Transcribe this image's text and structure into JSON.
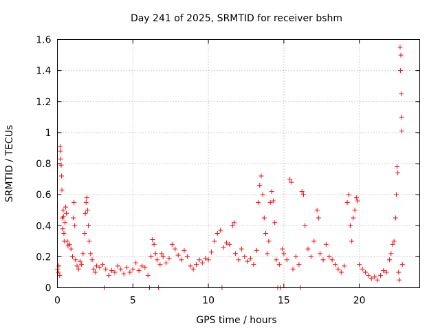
{
  "chart_data": {
    "type": "scatter",
    "title": "Day 241 of 2025, SRMTID for receiver bshm",
    "xlabel": "GPS time / hours",
    "ylabel": "SRMTID / TECUs",
    "xlim": [
      0,
      24
    ],
    "ylim": [
      0,
      1.6
    ],
    "xticks": [
      0,
      5,
      10,
      15,
      20
    ],
    "xtick_labels": [
      "0",
      "5",
      "10",
      "15",
      "20"
    ],
    "yticks": [
      0,
      0.2,
      0.4,
      0.6,
      0.8,
      1.0,
      1.2,
      1.4,
      1.6
    ],
    "ytick_labels": [
      "0",
      "0.2",
      "0.4",
      "0.6",
      "0.8",
      "1",
      "1.2",
      "1.4",
      "1.6"
    ],
    "grid": true,
    "marker": "+",
    "color": "#ff0000",
    "series": [
      {
        "name": "SRMTID",
        "points": [
          [
            0.0,
            0.12
          ],
          [
            0.05,
            0.1
          ],
          [
            0.1,
            0.14
          ],
          [
            0.15,
            0.08
          ],
          [
            0.18,
            0.91
          ],
          [
            0.2,
            0.88
          ],
          [
            0.22,
            0.83
          ],
          [
            0.25,
            0.79
          ],
          [
            0.27,
            0.72
          ],
          [
            0.3,
            0.63
          ],
          [
            0.32,
            0.45
          ],
          [
            0.35,
            0.38
          ],
          [
            0.38,
            0.5
          ],
          [
            0.4,
            0.46
          ],
          [
            0.43,
            0.35
          ],
          [
            0.45,
            0.3
          ],
          [
            0.5,
            0.42
          ],
          [
            0.55,
            0.52
          ],
          [
            0.6,
            0.48
          ],
          [
            0.65,
            0.3
          ],
          [
            0.7,
            0.27
          ],
          [
            0.8,
            0.28
          ],
          [
            0.9,
            0.25
          ],
          [
            1.0,
            0.2
          ],
          [
            1.05,
            0.45
          ],
          [
            1.1,
            0.55
          ],
          [
            1.15,
            0.4
          ],
          [
            1.2,
            0.18
          ],
          [
            1.3,
            0.14
          ],
          [
            1.4,
            0.12
          ],
          [
            1.5,
            0.17
          ],
          [
            1.6,
            0.15
          ],
          [
            1.7,
            0.22
          ],
          [
            1.8,
            0.35
          ],
          [
            1.85,
            0.48
          ],
          [
            1.9,
            0.55
          ],
          [
            1.95,
            0.58
          ],
          [
            2.0,
            0.5
          ],
          [
            2.05,
            0.4
          ],
          [
            2.1,
            0.3
          ],
          [
            2.2,
            0.22
          ],
          [
            2.3,
            0.18
          ],
          [
            2.4,
            0.12
          ],
          [
            2.5,
            0.1
          ],
          [
            2.6,
            0.14
          ],
          [
            2.8,
            0.13
          ],
          [
            3.0,
            0.15
          ],
          [
            3.2,
            0.12
          ],
          [
            3.1,
            0.0
          ],
          [
            3.4,
            0.08
          ],
          [
            3.6,
            0.11
          ],
          [
            3.8,
            0.1
          ],
          [
            4.0,
            0.14
          ],
          [
            4.2,
            0.12
          ],
          [
            4.4,
            0.09
          ],
          [
            4.6,
            0.13
          ],
          [
            4.8,
            0.1
          ],
          [
            5.0,
            0.12
          ],
          [
            5.2,
            0.16
          ],
          [
            5.4,
            0.11
          ],
          [
            5.6,
            0.14
          ],
          [
            5.8,
            0.13
          ],
          [
            6.0,
            0.08
          ],
          [
            6.1,
            0.0
          ],
          [
            6.2,
            0.2
          ],
          [
            6.3,
            0.31
          ],
          [
            6.4,
            0.28
          ],
          [
            6.5,
            0.22
          ],
          [
            6.6,
            0.18
          ],
          [
            6.7,
            0.0
          ],
          [
            6.8,
            0.15
          ],
          [
            6.9,
            0.22
          ],
          [
            7.0,
            0.2
          ],
          [
            7.2,
            0.16
          ],
          [
            7.4,
            0.19
          ],
          [
            7.6,
            0.28
          ],
          [
            7.8,
            0.25
          ],
          [
            8.0,
            0.21
          ],
          [
            8.2,
            0.18
          ],
          [
            8.4,
            0.24
          ],
          [
            8.6,
            0.2
          ],
          [
            8.8,
            0.14
          ],
          [
            9.0,
            0.12
          ],
          [
            9.2,
            0.15
          ],
          [
            9.4,
            0.18
          ],
          [
            9.6,
            0.16
          ],
          [
            9.8,
            0.19
          ],
          [
            10.0,
            0.18
          ],
          [
            10.2,
            0.23
          ],
          [
            10.4,
            0.3
          ],
          [
            10.6,
            0.35
          ],
          [
            10.8,
            0.37
          ],
          [
            10.9,
            0.0
          ],
          [
            11.0,
            0.26
          ],
          [
            11.2,
            0.29
          ],
          [
            11.4,
            0.28
          ],
          [
            11.6,
            0.4
          ],
          [
            11.7,
            0.42
          ],
          [
            11.8,
            0.22
          ],
          [
            12.0,
            0.18
          ],
          [
            12.2,
            0.25
          ],
          [
            12.4,
            0.2
          ],
          [
            12.6,
            0.17
          ],
          [
            12.8,
            0.19
          ],
          [
            13.0,
            0.15
          ],
          [
            13.2,
            0.24
          ],
          [
            13.3,
            0.55
          ],
          [
            13.4,
            0.66
          ],
          [
            13.5,
            0.72
          ],
          [
            13.6,
            0.6
          ],
          [
            13.7,
            0.45
          ],
          [
            13.8,
            0.35
          ],
          [
            13.9,
            0.22
          ],
          [
            14.0,
            0.3
          ],
          [
            14.1,
            0.55
          ],
          [
            14.2,
            0.62
          ],
          [
            14.3,
            0.56
          ],
          [
            14.4,
            0.42
          ],
          [
            14.5,
            0.18
          ],
          [
            14.6,
            0.0
          ],
          [
            14.7,
            0.15
          ],
          [
            14.8,
            0.0
          ],
          [
            14.9,
            0.25
          ],
          [
            15.0,
            0.22
          ],
          [
            15.2,
            0.18
          ],
          [
            15.4,
            0.7
          ],
          [
            15.5,
            0.68
          ],
          [
            15.6,
            0.12
          ],
          [
            15.8,
            0.2
          ],
          [
            16.0,
            0.15
          ],
          [
            16.1,
            0.0
          ],
          [
            16.2,
            0.62
          ],
          [
            16.3,
            0.6
          ],
          [
            16.4,
            0.4
          ],
          [
            16.6,
            0.25
          ],
          [
            16.8,
            0.2
          ],
          [
            17.0,
            0.3
          ],
          [
            17.2,
            0.5
          ],
          [
            17.3,
            0.45
          ],
          [
            17.4,
            0.22
          ],
          [
            17.6,
            0.18
          ],
          [
            17.8,
            0.28
          ],
          [
            18.0,
            0.2
          ],
          [
            18.2,
            0.18
          ],
          [
            18.4,
            0.15
          ],
          [
            18.6,
            0.12
          ],
          [
            18.8,
            0.1
          ],
          [
            19.0,
            0.14
          ],
          [
            19.2,
            0.55
          ],
          [
            19.3,
            0.6
          ],
          [
            19.4,
            0.4
          ],
          [
            19.5,
            0.3
          ],
          [
            19.6,
            0.45
          ],
          [
            19.7,
            0.5
          ],
          [
            19.8,
            0.58
          ],
          [
            19.9,
            0.56
          ],
          [
            20.0,
            0.15
          ],
          [
            20.2,
            0.12
          ],
          [
            20.4,
            0.1
          ],
          [
            20.6,
            0.08
          ],
          [
            20.8,
            0.06
          ],
          [
            21.0,
            0.07
          ],
          [
            21.2,
            0.05
          ],
          [
            21.4,
            0.08
          ],
          [
            21.6,
            0.11
          ],
          [
            21.8,
            0.1
          ],
          [
            22.0,
            0.18
          ],
          [
            22.1,
            0.22
          ],
          [
            22.2,
            0.28
          ],
          [
            22.3,
            0.3
          ],
          [
            22.4,
            0.45
          ],
          [
            22.45,
            0.6
          ],
          [
            22.5,
            0.78
          ],
          [
            22.55,
            0.74
          ],
          [
            22.6,
            0.1
          ],
          [
            22.65,
            0.05
          ],
          [
            22.7,
            1.55
          ],
          [
            22.72,
            1.4
          ],
          [
            22.75,
            1.5
          ],
          [
            22.78,
            1.25
          ],
          [
            22.8,
            1.1
          ],
          [
            22.82,
            1.01
          ],
          [
            22.85,
            0.15
          ]
        ]
      }
    ]
  }
}
